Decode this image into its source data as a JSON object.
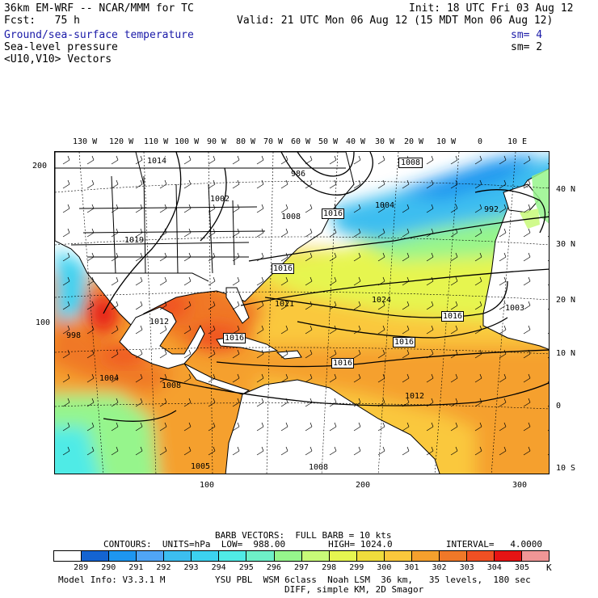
{
  "header": {
    "model_line": "36km EM-WRF -- NCAR/MMM for TC",
    "init_line": "Init: 18 UTC Fri 03 Aug 12",
    "fcst_line": "Fcst:   75 h",
    "valid_line": "Valid: 21 UTC Mon 06 Aug 12 (15 MDT Mon 06 Aug 12)",
    "field1": "Ground/sea-surface temperature",
    "field1_sm": "sm= 4",
    "field2": "Sea-level pressure",
    "field2_sm": "sm= 2",
    "field3": "<U10,V10> Vectors"
  },
  "axes": {
    "top_lon": [
      "130 W",
      "120 W",
      "110 W",
      "100 W",
      "90 W",
      "80 W",
      "70 W",
      "60 W",
      "50 W",
      "40 W",
      "30 W",
      "20 W",
      "10 W",
      "0",
      "10 E"
    ],
    "right_lat": [
      "40 N",
      "30 N",
      "20 N",
      "10 N",
      "0",
      "10 S"
    ],
    "left_grid": [
      "200",
      "100"
    ],
    "bottom_grid": [
      "100",
      "200",
      "300"
    ]
  },
  "pressure_labels": [
    {
      "text": "1014"
    },
    {
      "text": "1002"
    },
    {
      "text": "986"
    },
    {
      "text": "1008"
    },
    {
      "text": "1016"
    },
    {
      "text": "1008"
    },
    {
      "text": "1004"
    },
    {
      "text": "992"
    },
    {
      "text": "1019"
    },
    {
      "text": "1016"
    },
    {
      "text": "1021"
    },
    {
      "text": "1024"
    },
    {
      "text": "1016"
    },
    {
      "text": "1016"
    },
    {
      "text": "1016"
    },
    {
      "text": "1016"
    },
    {
      "text": "1003"
    },
    {
      "text": "998"
    },
    {
      "text": "1012"
    },
    {
      "text": "1004"
    },
    {
      "text": "1008"
    },
    {
      "text": "1012"
    },
    {
      "text": "1005"
    },
    {
      "text": "1008"
    }
  ],
  "footer": {
    "barb_line": "BARB VECTORS:  FULL BARB = 10 kts",
    "contours_line": "CONTOURS:  UNITS=hPa  LOW=  988.00        HIGH= 1024.0          INTERVAL=   4.0000",
    "model_info": "Model Info: V3.3.1 M",
    "physics_line": "YSU PBL  WSM 6class  Noah LSM  36 km,   35 levels,  180 sec",
    "diff_line": "DIFF, simple KM, 2D Smagor",
    "unit": "K"
  },
  "colorbar": {
    "labels": [
      "289",
      "290",
      "291",
      "292",
      "293",
      "294",
      "295",
      "296",
      "297",
      "298",
      "299",
      "300",
      "301",
      "302",
      "303",
      "304",
      "305"
    ],
    "colors": [
      "#ffffff",
      "#1464d2",
      "#1e96f0",
      "#50a5f5",
      "#3cbef0",
      "#3cd2f0",
      "#50ebe6",
      "#6ef0c8",
      "#96f58c",
      "#c8fa78",
      "#e6f550",
      "#f0dc3c",
      "#fac83c",
      "#f5a02d",
      "#f07828",
      "#f05023",
      "#e61414",
      "#f09696"
    ]
  }
}
